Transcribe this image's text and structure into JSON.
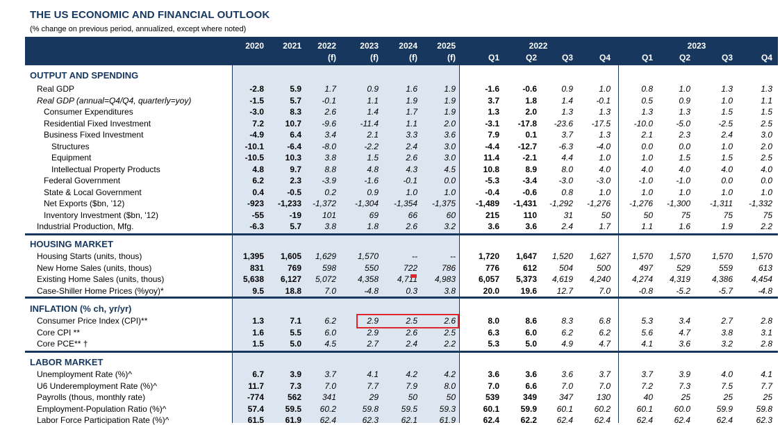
{
  "title": "THE US ECONOMIC AND FINANCIAL OUTLOOK",
  "subtitle": "(% change on previous period, annualized, except where noted)",
  "columns": {
    "annual": [
      {
        "year": "2020",
        "sub": ""
      },
      {
        "year": "2021",
        "sub": ""
      },
      {
        "year": "2022",
        "sub": "(f)"
      },
      {
        "year": "2023",
        "sub": "(f)"
      },
      {
        "year": "2024",
        "sub": "(f)"
      },
      {
        "year": "2025",
        "sub": "(f)"
      }
    ],
    "quarter_groups": [
      "2022",
      "2023"
    ],
    "quarters": [
      "Q1",
      "Q2",
      "Q3",
      "Q4",
      "Q1",
      "Q2",
      "Q3",
      "Q4"
    ]
  },
  "highlight_color": "#e0262b",
  "header_color": "#17375e",
  "shade_color": "#dce6f1",
  "sections": [
    {
      "title": "OUTPUT AND SPENDING",
      "rows": [
        {
          "label": "Real GDP",
          "indent": 0,
          "italic": false,
          "values": [
            "-2.8",
            "5.9",
            "1.7",
            "0.9",
            "1.6",
            "1.9",
            "-1.6",
            "-0.6",
            "0.9",
            "1.0",
            "0.8",
            "1.0",
            "1.3",
            "1.3"
          ]
        },
        {
          "label": "Real GDP (annual=Q4/Q4, quarterly=yoy)",
          "indent": 0,
          "italic": true,
          "values": [
            "-1.5",
            "5.7",
            "-0.1",
            "1.1",
            "1.9",
            "1.9",
            "3.7",
            "1.8",
            "1.4",
            "-0.1",
            "0.5",
            "0.9",
            "1.0",
            "1.1"
          ]
        },
        {
          "label": "Consumer Expenditures",
          "indent": 1,
          "italic": false,
          "values": [
            "-3.0",
            "8.3",
            "2.6",
            "1.4",
            "1.7",
            "1.9",
            "1.3",
            "2.0",
            "1.3",
            "1.3",
            "1.3",
            "1.3",
            "1.5",
            "1.5"
          ]
        },
        {
          "label": "Residential Fixed Investment",
          "indent": 1,
          "italic": false,
          "values": [
            "7.2",
            "10.7",
            "-9.6",
            "-11.4",
            "1.1",
            "2.0",
            "-3.1",
            "-17.8",
            "-23.6",
            "-17.5",
            "-10.0",
            "-5.0",
            "-2.5",
            "2.5"
          ]
        },
        {
          "label": "Business Fixed Investment",
          "indent": 1,
          "italic": false,
          "values": [
            "-4.9",
            "6.4",
            "3.4",
            "2.1",
            "3.3",
            "3.6",
            "7.9",
            "0.1",
            "3.7",
            "1.3",
            "2.1",
            "2.3",
            "2.4",
            "3.0"
          ]
        },
        {
          "label": "Structures",
          "indent": 2,
          "italic": false,
          "values": [
            "-10.1",
            "-6.4",
            "-8.0",
            "-2.2",
            "2.4",
            "3.0",
            "-4.4",
            "-12.7",
            "-6.3",
            "-4.0",
            "0.0",
            "0.0",
            "1.0",
            "2.0"
          ]
        },
        {
          "label": "Equipment",
          "indent": 2,
          "italic": false,
          "values": [
            "-10.5",
            "10.3",
            "3.8",
            "1.5",
            "2.6",
            "3.0",
            "11.4",
            "-2.1",
            "4.4",
            "1.0",
            "1.0",
            "1.5",
            "1.5",
            "2.5"
          ]
        },
        {
          "label": "Intellectual Property Products",
          "indent": 2,
          "italic": false,
          "values": [
            "4.8",
            "9.7",
            "8.8",
            "4.8",
            "4.3",
            "4.5",
            "10.8",
            "8.9",
            "8.0",
            "4.0",
            "4.0",
            "4.0",
            "4.0",
            "4.0"
          ]
        },
        {
          "label": "Federal Government",
          "indent": 1,
          "italic": false,
          "values": [
            "6.2",
            "2.3",
            "-3.9",
            "-1.6",
            "-0.1",
            "0.0",
            "-5.3",
            "-3.4",
            "-3.0",
            "-3.0",
            "-1.0",
            "-1.0",
            "0.0",
            "0.0"
          ]
        },
        {
          "label": "State & Local Government",
          "indent": 1,
          "italic": false,
          "values": [
            "0.4",
            "-0.5",
            "0.2",
            "0.9",
            "1.0",
            "1.0",
            "-0.4",
            "-0.6",
            "0.8",
            "1.0",
            "1.0",
            "1.0",
            "1.0",
            "1.0"
          ]
        },
        {
          "label": "Net Exports ($bn, '12)",
          "indent": 1,
          "italic": false,
          "values": [
            "-923",
            "-1,233",
            "-1,372",
            "-1,304",
            "-1,354",
            "-1,375",
            "-1,489",
            "-1,431",
            "-1,292",
            "-1,276",
            "-1,276",
            "-1,300",
            "-1,311",
            "-1,332"
          ]
        },
        {
          "label": "Inventory Investment ($bn, '12)",
          "indent": 1,
          "italic": false,
          "values": [
            "-55",
            "-19",
            "101",
            "69",
            "66",
            "60",
            "215",
            "110",
            "31",
            "50",
            "50",
            "75",
            "75",
            "75"
          ]
        },
        {
          "label": "Industrial Production, Mfg.",
          "indent": 0,
          "italic": false,
          "values": [
            "-6.3",
            "5.7",
            "3.8",
            "1.8",
            "2.6",
            "3.2",
            "3.6",
            "3.6",
            "2.4",
            "1.7",
            "1.1",
            "1.6",
            "1.9",
            "2.2"
          ]
        }
      ]
    },
    {
      "title": "HOUSING MARKET",
      "rows": [
        {
          "label": "Housing Starts (units, thous)",
          "indent": 0,
          "italic": false,
          "values": [
            "1,395",
            "1,605",
            "1,629",
            "1,570",
            "--",
            "--",
            "1,720",
            "1,647",
            "1,520",
            "1,627",
            "1,570",
            "1,570",
            "1,570",
            "1,570"
          ]
        },
        {
          "label": "New Home Sales (units, thous)",
          "indent": 0,
          "italic": false,
          "values": [
            "831",
            "769",
            "598",
            "550",
            "722",
            "786",
            "776",
            "612",
            "504",
            "500",
            "497",
            "529",
            "559",
            "613"
          ]
        },
        {
          "label": "Existing Home Sales (units, thous)",
          "indent": 0,
          "italic": false,
          "values": [
            "5,638",
            "6,127",
            "5,072",
            "4,358",
            "4,711",
            "4,983",
            "6,057",
            "5,373",
            "4,619",
            "4,240",
            "4,274",
            "4,319",
            "4,386",
            "4,454"
          ]
        },
        {
          "label": "Case-Shiller Home Prices (%yoy)*",
          "indent": 0,
          "italic": false,
          "values": [
            "9.5",
            "18.8",
            "7.0",
            "-4.8",
            "0.3",
            "3.8",
            "20.0",
            "19.6",
            "12.7",
            "7.0",
            "-0.8",
            "-5.2",
            "-5.7",
            "-4.8"
          ]
        }
      ]
    },
    {
      "title": "INFLATION (% ch, yr/yr)",
      "rows": [
        {
          "label": "Consumer Price Index (CPI)**",
          "indent": 0,
          "italic": false,
          "values": [
            "1.3",
            "7.1",
            "6.2",
            "2.9",
            "2.5",
            "2.6",
            "8.0",
            "8.6",
            "8.3",
            "6.8",
            "5.3",
            "3.4",
            "2.7",
            "2.8"
          ]
        },
        {
          "label": "Core CPI **",
          "indent": 0,
          "italic": false,
          "values": [
            "1.6",
            "5.5",
            "6.0",
            "2.9",
            "2.6",
            "2.5",
            "6.3",
            "6.0",
            "6.2",
            "6.2",
            "5.6",
            "4.7",
            "3.8",
            "3.1"
          ]
        },
        {
          "label": "Core PCE** †",
          "indent": 0,
          "italic": false,
          "values": [
            "1.5",
            "5.0",
            "4.5",
            "2.7",
            "2.4",
            "2.2",
            "5.3",
            "5.0",
            "4.9",
            "4.7",
            "4.1",
            "3.6",
            "3.2",
            "2.8"
          ]
        }
      ]
    },
    {
      "title": "LABOR MARKET",
      "rows": [
        {
          "label": "Unemployment Rate (%)^",
          "indent": 0,
          "italic": false,
          "values": [
            "6.7",
            "3.9",
            "3.7",
            "4.1",
            "4.2",
            "4.2",
            "3.6",
            "3.6",
            "3.6",
            "3.7",
            "3.7",
            "3.9",
            "4.0",
            "4.1"
          ]
        },
        {
          "label": "U6 Underemployment Rate (%)^",
          "indent": 0,
          "italic": false,
          "values": [
            "11.7",
            "7.3",
            "7.0",
            "7.7",
            "7.9",
            "8.0",
            "7.0",
            "6.6",
            "7.0",
            "7.0",
            "7.2",
            "7.3",
            "7.5",
            "7.7"
          ]
        },
        {
          "label": "Payrolls (thous, monthly rate)",
          "indent": 0,
          "italic": false,
          "values": [
            "-774",
            "562",
            "341",
            "29",
            "50",
            "50",
            "539",
            "349",
            "347",
            "130",
            "40",
            "25",
            "25",
            "25"
          ]
        },
        {
          "label": "Employment-Population Ratio (%)^",
          "indent": 0,
          "italic": false,
          "values": [
            "57.4",
            "59.5",
            "60.2",
            "59.8",
            "59.5",
            "59.3",
            "60.1",
            "59.9",
            "60.1",
            "60.2",
            "60.1",
            "60.0",
            "59.9",
            "59.8"
          ]
        },
        {
          "label": "Labor Force Participation Rate (%)^",
          "indent": 0,
          "italic": false,
          "values": [
            "61.5",
            "61.9",
            "62.4",
            "62.3",
            "62.1",
            "61.9",
            "62.4",
            "62.2",
            "62.4",
            "62.4",
            "62.4",
            "62.4",
            "62.4",
            "62.3"
          ]
        }
      ]
    }
  ]
}
